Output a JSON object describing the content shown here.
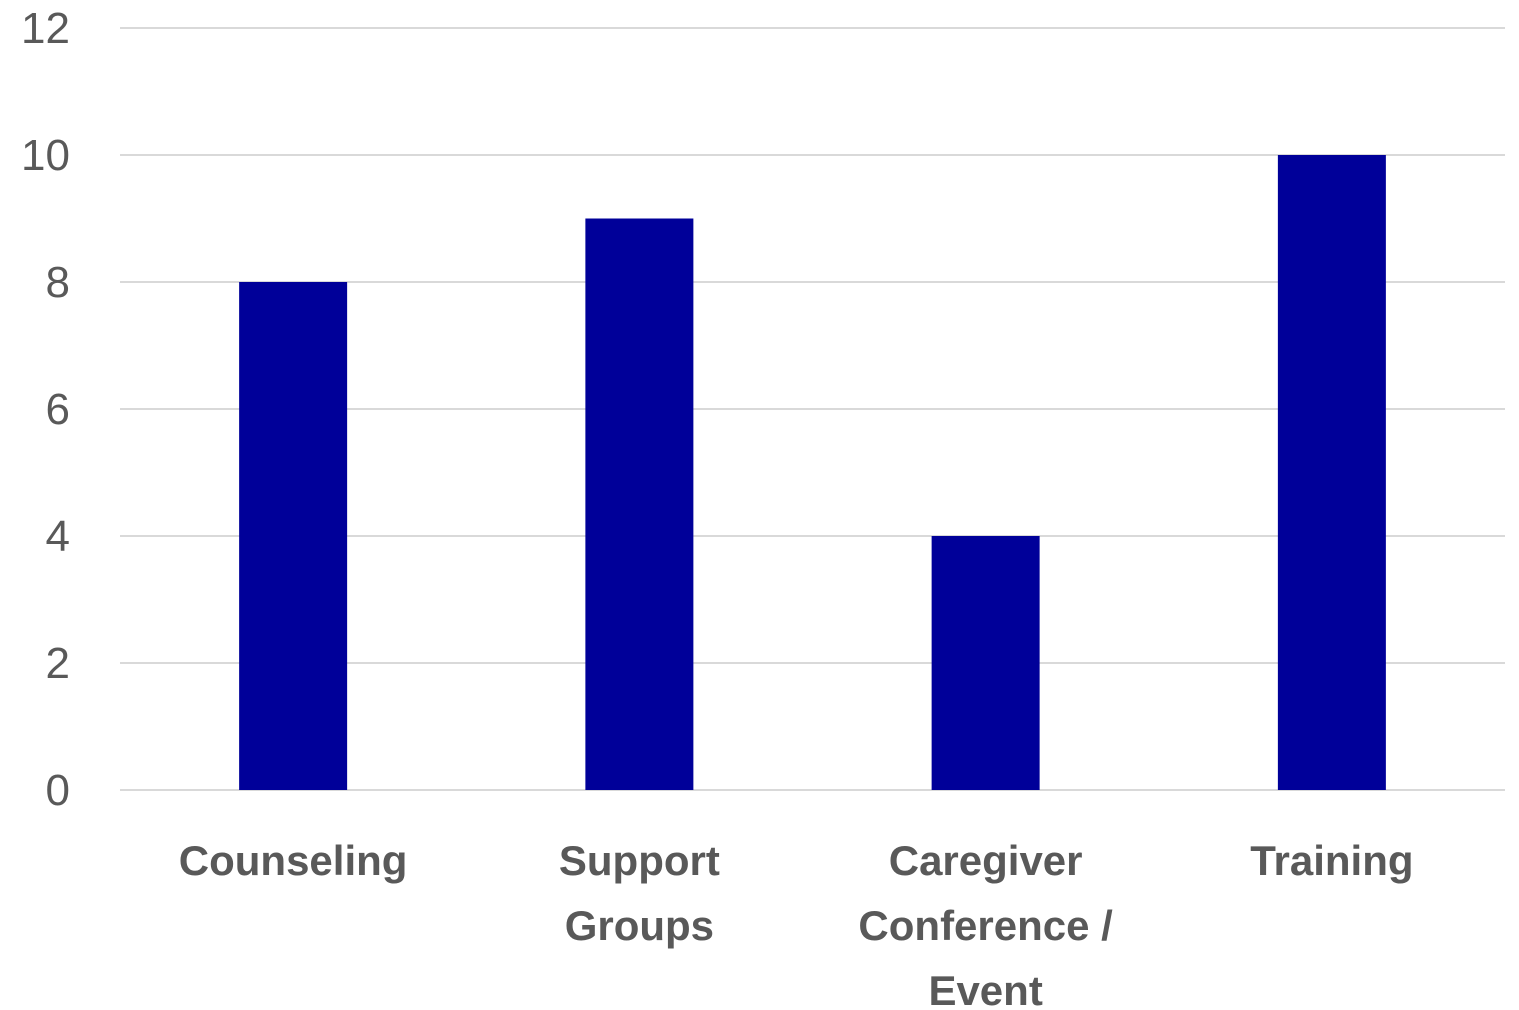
{
  "chart_data": {
    "type": "bar",
    "categories": [
      [
        "Counseling"
      ],
      [
        "Support",
        "Groups"
      ],
      [
        "Caregiver",
        "Conference /",
        "Event"
      ],
      [
        "Training"
      ]
    ],
    "category_names": [
      "Counseling",
      "Support Groups",
      "Caregiver Conference / Event",
      "Training"
    ],
    "values": [
      8,
      9,
      4,
      10
    ],
    "ylim": [
      0,
      12
    ],
    "yticks": [
      0,
      2,
      4,
      6,
      8,
      10,
      12
    ],
    "grid": true,
    "legend": "none",
    "title": "",
    "xlabel": "",
    "ylabel": "",
    "colors": {
      "bar": "#000099",
      "grid": "#d9d9d9",
      "text": "#595959"
    }
  }
}
